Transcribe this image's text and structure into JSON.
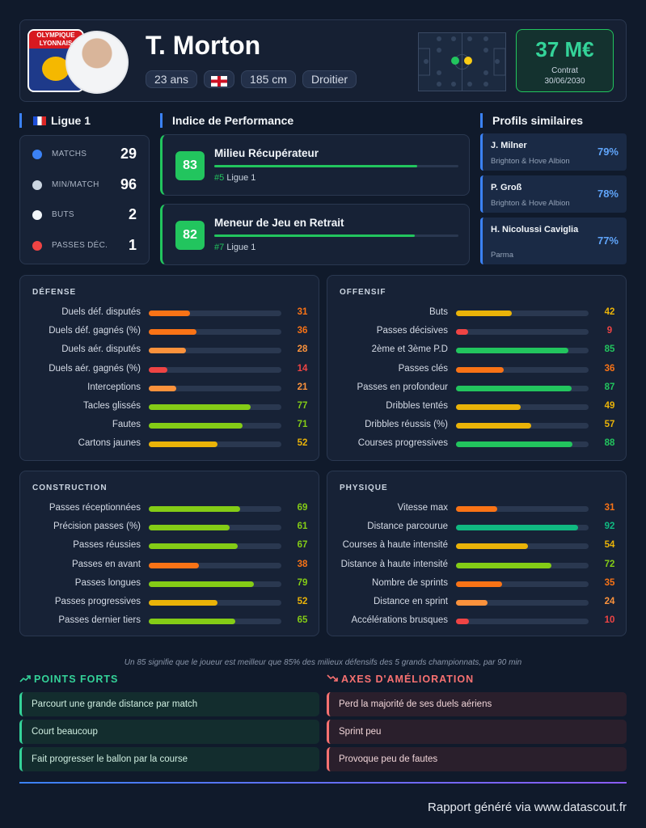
{
  "header": {
    "club": "OLYMPIQUE LYONNAIS",
    "name": "T. Morton",
    "tags": [
      "23 ans",
      "185 cm",
      "Droitier"
    ],
    "market_value": "37 M€",
    "contract_label": "Contrat",
    "contract_date": "30/06/2030"
  },
  "league": {
    "title": "Ligue 1",
    "stats": [
      {
        "label": "MATCHS",
        "value": 29
      },
      {
        "label": "MIN/MATCH",
        "value": 96
      },
      {
        "label": "BUTS",
        "value": 2
      },
      {
        "label": "PASSES DÉC.",
        "value": 1
      }
    ]
  },
  "performance": {
    "title": "Indice de Performance",
    "items": [
      {
        "score": 83,
        "role": "Milieu Récupérateur",
        "rank": "#5",
        "league": "Ligue 1"
      },
      {
        "score": 82,
        "role": "Meneur de Jeu en Retrait",
        "rank": "#7",
        "league": "Ligue 1"
      }
    ]
  },
  "similar": {
    "title": "Profils similaires",
    "items": [
      {
        "name": "J. Milner",
        "club": "Brighton & Hove Albion",
        "match": "79%"
      },
      {
        "name": "P. Groß",
        "club": "Brighton & Hove Albion",
        "match": "78%"
      },
      {
        "name": "H. Nicolussi Caviglia",
        "club": "Parma",
        "match": "77%"
      }
    ]
  },
  "panels": [
    {
      "title": "DÉFENSE",
      "rows": [
        {
          "label": "Duels déf. disputés",
          "value": 31
        },
        {
          "label": "Duels déf. gagnés (%)",
          "value": 36
        },
        {
          "label": "Duels aér. disputés",
          "value": 28
        },
        {
          "label": "Duels aér. gagnés (%)",
          "value": 14
        },
        {
          "label": "Interceptions",
          "value": 21
        },
        {
          "label": "Tacles glissés",
          "value": 77
        },
        {
          "label": "Fautes",
          "value": 71
        },
        {
          "label": "Cartons jaunes",
          "value": 52
        }
      ]
    },
    {
      "title": "OFFENSIF",
      "rows": [
        {
          "label": "Buts",
          "value": 42
        },
        {
          "label": "Passes décisives",
          "value": 9
        },
        {
          "label": "2ème et 3ème P.D",
          "value": 85
        },
        {
          "label": "Passes clés",
          "value": 36
        },
        {
          "label": "Passes en profondeur",
          "value": 87
        },
        {
          "label": "Dribbles tentés",
          "value": 49
        },
        {
          "label": "Dribbles réussis (%)",
          "value": 57
        },
        {
          "label": "Courses progressives",
          "value": 88
        }
      ]
    },
    {
      "title": "CONSTRUCTION",
      "rows": [
        {
          "label": "Passes réceptionnées",
          "value": 69
        },
        {
          "label": "Précision passes (%)",
          "value": 61
        },
        {
          "label": "Passes réussies",
          "value": 67
        },
        {
          "label": "Passes en avant",
          "value": 38
        },
        {
          "label": "Passes longues",
          "value": 79
        },
        {
          "label": "Passes progressives",
          "value": 52
        },
        {
          "label": "Passes dernier tiers",
          "value": 65
        }
      ]
    },
    {
      "title": "PHYSIQUE",
      "rows": [
        {
          "label": "Vitesse max",
          "value": 31
        },
        {
          "label": "Distance parcourue",
          "value": 92
        },
        {
          "label": "Courses à haute intensité",
          "value": 54
        },
        {
          "label": "Distance à haute intensité",
          "value": 72
        },
        {
          "label": "Nombre de sprints",
          "value": 35
        },
        {
          "label": "Distance en sprint",
          "value": 24
        },
        {
          "label": "Accélérations brusques",
          "value": 10
        }
      ]
    }
  ],
  "footnote": "Un 85 signifie que le joueur est meilleur que 85% des milieux défensifs des 5 grands championnats, par 90 min",
  "strengths": {
    "title": "POINTS FORTS",
    "items": [
      "Parcourt une grande distance par match",
      "Court beaucoup",
      "Fait progresser le ballon par la course"
    ]
  },
  "weaknesses": {
    "title": "AXES D'AMÉLIORATION",
    "items": [
      "Perd la majorité de ses duels aériens",
      "Sprint peu",
      "Provoque peu de fautes"
    ]
  },
  "footer": "Rapport généré via www.datascout.fr"
}
